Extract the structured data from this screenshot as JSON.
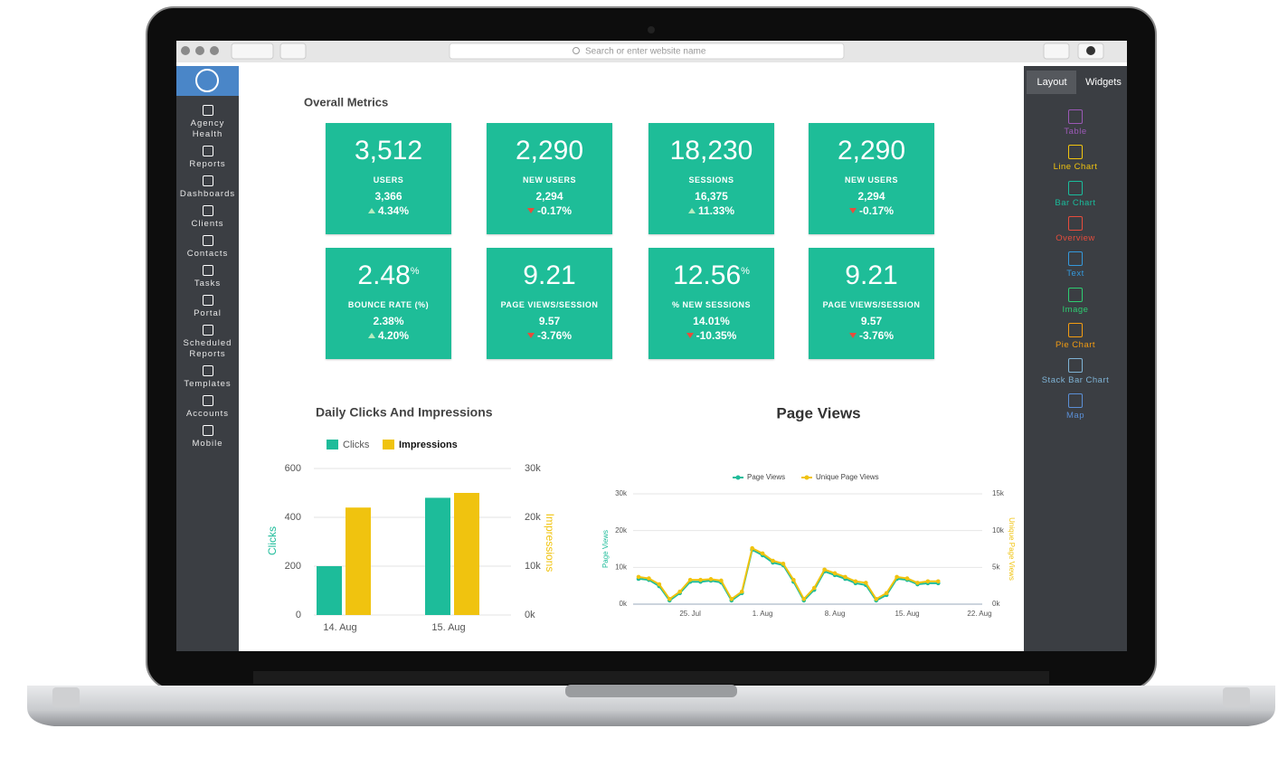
{
  "browser": {
    "search_placeholder": "Search or enter website name"
  },
  "sidebar": {
    "items": [
      "Agency Health",
      "Reports",
      "Dashboards",
      "Clients",
      "Contacts",
      "Tasks",
      "Portal",
      "Scheduled Reports",
      "Templates",
      "Accounts",
      "Mobile"
    ]
  },
  "right_panel": {
    "tabs": [
      "Layout",
      "Widgets"
    ],
    "widgets": [
      "Table",
      "Line Chart",
      "Bar Chart",
      "Overview",
      "Text",
      "Image",
      "Pie Chart",
      "Stack Bar Chart",
      "Map"
    ]
  },
  "metrics": {
    "title": "Overall Metrics",
    "cards": [
      {
        "value": "3,512",
        "label": "USERS",
        "previous": "3,366",
        "change": "4.34%",
        "direction": "up"
      },
      {
        "value": "2,290",
        "label": "NEW USERS",
        "previous": "2,294",
        "change": "-0.17%",
        "direction": "down"
      },
      {
        "value": "18,230",
        "label": "SESSIONS",
        "previous": "16,375",
        "change": "11.33%",
        "direction": "up"
      },
      {
        "value": "2,290",
        "label": "NEW USERS",
        "previous": "2,294",
        "change": "-0.17%",
        "direction": "down"
      },
      {
        "value": "2.48",
        "unit": "%",
        "label": "BOUNCE RATE (%)",
        "previous": "2.38%",
        "change": "4.20%",
        "direction": "up"
      },
      {
        "value": "9.21",
        "label": "PAGE VIEWS/SESSION",
        "previous": "9.57",
        "change": "-3.76%",
        "direction": "down"
      },
      {
        "value": "12.56",
        "unit": "%",
        "label": "% NEW SESSIONS",
        "previous": "14.01%",
        "change": "-10.35%",
        "direction": "down"
      },
      {
        "value": "9.21",
        "label": "PAGE VIEWS/SESSION",
        "previous": "9.57",
        "change": "-3.76%",
        "direction": "down"
      }
    ]
  },
  "chart_data": [
    {
      "type": "bar",
      "title": "Daily Clicks And Impressions",
      "categories": [
        "14. Aug",
        "15. Aug"
      ],
      "series": [
        {
          "name": "Clicks",
          "color": "#1dbc9a",
          "values": [
            200,
            480
          ]
        },
        {
          "name": "Impressions",
          "color": "#f0c30f",
          "axis": "y2",
          "values": [
            22000,
            25000
          ]
        }
      ],
      "ylabel": "Clicks",
      "y2label": "Impressions",
      "ylim": [
        0,
        600
      ],
      "yticks": [
        0,
        200,
        400,
        600
      ],
      "y2lim": [
        0,
        30000
      ],
      "y2ticks": [
        {
          "value": 0,
          "label": "0k"
        },
        {
          "value": 10000,
          "label": "10k"
        },
        {
          "value": 20000,
          "label": "20k"
        },
        {
          "value": 30000,
          "label": "30k"
        }
      ],
      "grid": true
    },
    {
      "type": "line",
      "title": "Page Views",
      "x": [
        null,
        null,
        null,
        null,
        null,
        "25. Jul",
        null,
        null,
        null,
        null,
        null,
        null,
        "1. Aug",
        null,
        null,
        null,
        null,
        null,
        null,
        "8. Aug",
        null,
        null,
        null,
        null,
        null,
        null,
        "15. Aug",
        null,
        null,
        null,
        null,
        null,
        null,
        "22. Aug"
      ],
      "series": [
        {
          "name": "Page Views",
          "color": "#1dbc9a",
          "values": [
            6900,
            6600,
            4900,
            1000,
            3000,
            6100,
            6100,
            6400,
            5900,
            1000,
            3000,
            14800,
            13300,
            11300,
            10600,
            6100,
            1000,
            3900,
            8900,
            7900,
            6900,
            5700,
            5200,
            1000,
            2500,
            6900,
            6600,
            5400,
            5700,
            5700,
            null,
            null,
            null,
            null
          ]
        },
        {
          "name": "Unique Page Views",
          "color": "#f0c30f",
          "axis": "y2",
          "values": [
            3700,
            3500,
            2700,
            700,
            1700,
            3300,
            3300,
            3400,
            3200,
            700,
            1700,
            7600,
            6900,
            5900,
            5500,
            3300,
            700,
            2200,
            4700,
            4200,
            3700,
            3100,
            2900,
            700,
            1500,
            3700,
            3500,
            2900,
            3100,
            3100,
            null,
            null,
            null,
            null
          ]
        }
      ],
      "ylabel": "Page Views",
      "y2label": "Unique Page Views",
      "ylim": [
        0,
        30000
      ],
      "yticks": [
        {
          "value": 0,
          "label": "0k"
        },
        {
          "value": 10000,
          "label": "10k"
        },
        {
          "value": 20000,
          "label": "20k"
        },
        {
          "value": 30000,
          "label": "30k"
        }
      ],
      "y2lim": [
        0,
        15000
      ],
      "y2ticks": [
        {
          "value": 0,
          "label": "0k"
        },
        {
          "value": 5000,
          "label": "5k"
        },
        {
          "value": 10000,
          "label": "10k"
        },
        {
          "value": 15000,
          "label": "15k"
        }
      ],
      "grid": true
    }
  ]
}
